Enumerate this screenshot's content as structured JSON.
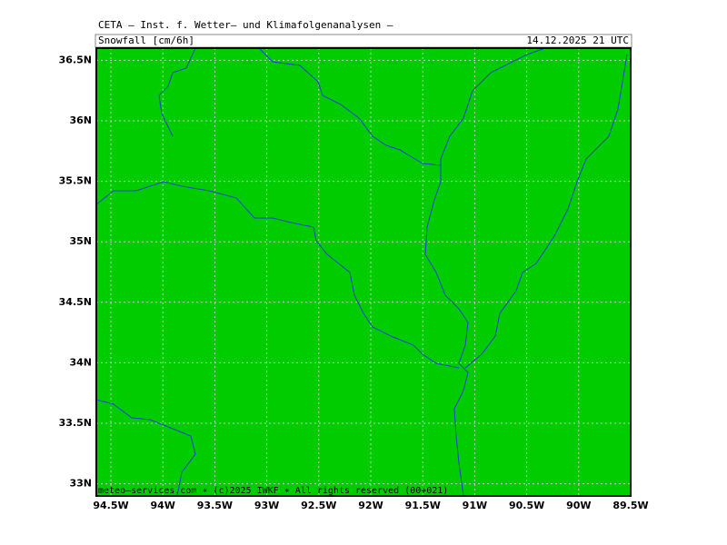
{
  "header": {
    "title": "CETA – Inst. f. Wetter– und Klimafolgenanalysen –",
    "parameter": "Snowfall [cm/6h]",
    "valid_time": "14.12.2025 21 UTC"
  },
  "footer": "meteo–services.com ∗ (c)2025 IWKF ∗ All rights reserved (00+021)",
  "map": {
    "fill_color": "#00cc00",
    "lon_range": [
      -94.64,
      -89.5
    ],
    "lat_range": [
      32.9,
      36.6
    ],
    "lon_ticks": [
      {
        "value": -94.5,
        "label": "94.5W"
      },
      {
        "value": -94,
        "label": "94W"
      },
      {
        "value": -93.5,
        "label": "93.5W"
      },
      {
        "value": -93,
        "label": "93W"
      },
      {
        "value": -92.5,
        "label": "92.5W"
      },
      {
        "value": -92,
        "label": "92W"
      },
      {
        "value": -91.5,
        "label": "91.5W"
      },
      {
        "value": -91,
        "label": "91W"
      },
      {
        "value": -90.5,
        "label": "90.5W"
      },
      {
        "value": -90,
        "label": "90W"
      },
      {
        "value": -89.5,
        "label": "89.5W"
      }
    ],
    "lat_ticks": [
      {
        "value": 33,
        "label": "33N"
      },
      {
        "value": 33.5,
        "label": "33.5N"
      },
      {
        "value": 34,
        "label": "34N"
      },
      {
        "value": 34.5,
        "label": "34.5N"
      },
      {
        "value": 35,
        "label": "35N"
      },
      {
        "value": 35.5,
        "label": "35.5N"
      },
      {
        "value": 36,
        "label": "36N"
      },
      {
        "value": 36.5,
        "label": "36.5N"
      }
    ]
  }
}
